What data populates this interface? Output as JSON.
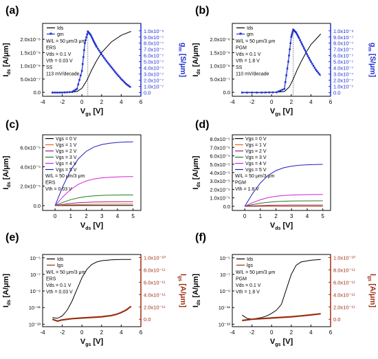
{
  "figure": {
    "panels": [
      {
        "id": "a",
        "label": "(a)"
      },
      {
        "id": "b",
        "label": "(b)"
      },
      {
        "id": "c",
        "label": "(c)"
      },
      {
        "id": "d",
        "label": "(d)"
      },
      {
        "id": "e",
        "label": "(e)"
      },
      {
        "id": "f",
        "label": "(f)"
      }
    ]
  },
  "colors": {
    "ids": "#000000",
    "gm": "#1f2fd1",
    "log_gm": "#9b2d10",
    "vg": [
      "#000000",
      "#e0651b",
      "#a1207a",
      "#1e7d1e",
      "#d41fd4",
      "#1e1ebd"
    ]
  },
  "chart_data": [
    {
      "id": "a",
      "type": "line",
      "xlabel": "Vgs [V]",
      "ylabel": "Ids [A/μm]",
      "y2label": "gm [S/μm]",
      "xlim": [
        -4,
        6
      ],
      "xticks": [
        "-4",
        "-2",
        "0",
        "2",
        "4",
        "6"
      ],
      "ylim": [
        -1.5e-07,
        2.6e-06
      ],
      "yticks": [
        "0.0",
        "5.0x10⁻⁷",
        "1.0x10⁻⁶",
        "1.5x10⁻⁶",
        "2.0x10⁻⁶"
      ],
      "y2lim": [
        -6e-08,
        1.12e-06
      ],
      "y2ticks": [
        "0.0",
        "1.0x10⁻⁷",
        "2.0x10⁻⁷",
        "3.0x10⁻⁷",
        "4.0x10⁻⁷",
        "5.0x10⁻⁷",
        "6.0x10⁻⁷",
        "7.0x10⁻⁷",
        "8.0x10⁻⁷",
        "9.0x10⁻⁷",
        "1.0x10⁻⁶"
      ],
      "legend": [
        "Ids",
        "gm"
      ],
      "annotations": [
        "W/L = 50 μm/3 μm",
        "ERS",
        "Vds = 0.1 V",
        "Vth = 0.03 V",
        "SS",
        "113 mV/decade"
      ],
      "series": [
        {
          "name": "Ids",
          "axis": "left",
          "x": [
            -3,
            -2,
            -1,
            -0.5,
            0,
            0.5,
            1,
            1.5,
            2,
            3,
            4,
            5
          ],
          "values": [
            0,
            0,
            5e-09,
            3e-08,
            1.5e-07,
            4.5e-07,
            8.5e-07,
            1.2e-06,
            1.5e-06,
            1.9e-06,
            2.15e-06,
            2.3e-06
          ]
        },
        {
          "name": "gm",
          "axis": "right",
          "markers": true,
          "x": [
            -3,
            -2,
            -1,
            -0.5,
            0,
            0.3,
            0.6,
            0.9,
            1.2,
            1.5,
            2,
            2.5,
            3,
            3.5,
            4,
            4.5,
            5
          ],
          "values": [
            0,
            0,
            1e-08,
            6e-08,
            3.5e-07,
            8e-07,
            9.9e-07,
            9.3e-07,
            8.3e-07,
            7.4e-07,
            6.2e-07,
            5.1e-07,
            4.1e-07,
            3.1e-07,
            2.2e-07,
            1.4e-07,
            8e-08
          ]
        }
      ]
    },
    {
      "id": "b",
      "type": "line",
      "xlabel": "Vgs [V]",
      "ylabel": "Ids [A/μm]",
      "y2label": "gm [S/μm]",
      "xlim": [
        -4,
        6
      ],
      "xticks": [
        "-4",
        "-2",
        "0",
        "2",
        "4",
        "6"
      ],
      "ylim": [
        -1.5e-07,
        2.6e-06
      ],
      "yticks": [
        "0.0",
        "5.0x10⁻⁷",
        "1.0x10⁻⁶",
        "1.5x10⁻⁶",
        "2.0x10⁻⁶"
      ],
      "y2lim": [
        -6e-08,
        1.12e-06
      ],
      "y2ticks": [
        "0.0",
        "1.0x10⁻⁷",
        "2.0x10⁻⁷",
        "3.0x10⁻⁷",
        "4.0x10⁻⁷",
        "5.0x10⁻⁷",
        "6.0x10⁻⁷",
        "7.0x10⁻⁷",
        "8.0x10⁻⁷",
        "9.0x10⁻⁷",
        "1.0x10⁻⁶"
      ],
      "legend": [
        "Ids",
        "gm"
      ],
      "annotations": [
        "W/L = 50 μm/3 μm",
        "PGM",
        "Vds = 0.1 V",
        "Vth = 1.8 V",
        "SS",
        "110 mV/decade"
      ],
      "series": [
        {
          "name": "Ids",
          "axis": "left",
          "x": [
            -3,
            -1,
            0.5,
            1.3,
            1.8,
            2.2,
            2.6,
            3,
            3.5,
            4,
            4.5,
            5
          ],
          "values": [
            0,
            0,
            5e-09,
            3e-08,
            2e-07,
            5e-07,
            8.5e-07,
            1.15e-06,
            1.5e-06,
            1.8e-06,
            2e-06,
            2.2e-06
          ]
        },
        {
          "name": "gm",
          "axis": "right",
          "markers": true,
          "x": [
            -3,
            -1,
            0.5,
            1.3,
            1.7,
            2.0,
            2.2,
            2.5,
            2.8,
            3.2,
            3.6,
            4,
            4.5,
            5
          ],
          "values": [
            0,
            0,
            5e-09,
            6e-08,
            5e-07,
            9e-07,
            1.02e-06,
            9.7e-07,
            8.8e-07,
            7.5e-07,
            6.2e-07,
            5e-07,
            3.7e-07,
            2.7e-07
          ]
        }
      ]
    },
    {
      "id": "c",
      "type": "line",
      "xlabel": "Vds [V]",
      "ylabel": "Ids [A/μm]",
      "xlim": [
        -0.8,
        5.5
      ],
      "xticks": [
        "0",
        "1",
        "2",
        "3",
        "4",
        "5"
      ],
      "ylim": [
        -5e-06,
        7.3e-05
      ],
      "yticks": [
        "0.0",
        "2.0x10⁻⁵",
        "4.0x10⁻⁵",
        "6.0x10⁻⁵"
      ],
      "legend": [
        "Vgs = 0 V",
        "Vgs = 1 V",
        "Vgs = 2 V",
        "Vgs = 3 V",
        "Vgs = 4 V",
        "Vgs = 5 V"
      ],
      "annotations": [
        "W/L = 50 μm/3 μm",
        "ERS",
        "Vth = 0.03 V"
      ],
      "sat": [
        1e-07,
        1.5e-06,
        4e-06,
        1.1e-05,
        3e-05,
        6.6e-05
      ],
      "x": [
        0,
        0.5,
        1,
        1.5,
        2,
        2.5,
        3,
        3.5,
        4,
        4.5,
        5
      ]
    },
    {
      "id": "d",
      "type": "line",
      "xlabel": "Vds [V]",
      "ylabel": "Ids [A/μm]",
      "xlim": [
        -0.8,
        5.5
      ],
      "xticks": [
        "0",
        "1",
        "2",
        "3",
        "4",
        "5"
      ],
      "ylim": [
        -5e-06,
        8.5e-05
      ],
      "yticks": [
        "0.0",
        "1.0x10⁻⁵",
        "2.0x10⁻⁵",
        "3.0x10⁻⁵",
        "4.0x10⁻⁵",
        "5.0x10⁻⁵",
        "6.0x10⁻⁵",
        "7.0x10⁻⁵",
        "8.0x10⁻⁵"
      ],
      "legend": [
        "Vgs = 0 V",
        "Vgs = 1 V",
        "Vgs = 2 V",
        "Vgs = 3 V",
        "Vgs = 4 V",
        "Vgs = 5 V"
      ],
      "annotations": [
        "W/L = 50 μm/3 μm",
        "PGM",
        "Vth = 1.8 V"
      ],
      "sat": [
        5e-08,
        2e-07,
        1.5e-06,
        6.5e-06,
        1.4e-05,
        5e-05
      ],
      "x": [
        0,
        0.5,
        1,
        1.5,
        2,
        2.5,
        3,
        3.5,
        4,
        4.5,
        5
      ]
    },
    {
      "id": "e",
      "type": "line",
      "xlabel": "Vgs [V]",
      "ylabel": "Ids [A/μm]",
      "y2label": "lgs [A/μm]",
      "xlim": [
        -4,
        6
      ],
      "xticks": [
        "-4",
        "-2",
        "0",
        "2",
        "4",
        "6"
      ],
      "ylim_exp": [
        -13.3,
        -4.6
      ],
      "yticks": [
        "10⁻¹³",
        "10⁻¹¹",
        "10⁻⁹",
        "10⁻⁷",
        "10⁻⁵"
      ],
      "y2lim": [
        -1.2e-11,
        1.05e-10
      ],
      "y2ticks": [
        "0.0",
        "2.0x10⁻¹¹",
        "4.0x10⁻¹¹",
        "6.0x10⁻¹¹",
        "8.0x10⁻¹¹",
        "1.0x10⁻¹⁰"
      ],
      "legend": [
        "Ids",
        "lgs"
      ],
      "annotations": [
        "W/L = 50 μm/3 μm",
        "ERS",
        "Vds = 0.1 V",
        "Vth = 0.03 V"
      ],
      "series": [
        {
          "name": "Ids",
          "axis": "left",
          "x": [
            -3,
            -2.5,
            -2,
            -1.5,
            -1,
            -0.5,
            0,
            0.5,
            1,
            1.5,
            2,
            3,
            4,
            5
          ],
          "log10": [
            -12.2,
            -12.3,
            -12.0,
            -11.3,
            -10.2,
            -8.8,
            -7.4,
            -6.4,
            -5.8,
            -5.5,
            -5.35,
            -5.25,
            -5.2,
            -5.2
          ]
        },
        {
          "name": "lgs",
          "axis": "right",
          "x": [
            -3,
            -2.5,
            -2,
            -1,
            0,
            1,
            2,
            3,
            3.5,
            4,
            4.5,
            5
          ],
          "values": [
            0,
            -3e-12,
            -1e-12,
            1e-12,
            2e-12,
            3e-12,
            4e-12,
            6e-12,
            8e-12,
            1.1e-11,
            1.5e-11,
            2.1e-11
          ]
        }
      ]
    },
    {
      "id": "f",
      "type": "line",
      "xlabel": "Vgs [V]",
      "ylabel": "Ids [A/μm]",
      "y2label": "lgs [A/μm]",
      "xlim": [
        -4,
        6
      ],
      "xticks": [
        "-4",
        "-2",
        "0",
        "2",
        "4",
        "6"
      ],
      "ylim_exp": [
        -13.3,
        -4.6
      ],
      "yticks": [
        "10⁻¹³",
        "10⁻¹¹",
        "10⁻⁹",
        "10⁻⁷",
        "10⁻⁵"
      ],
      "y2lim": [
        -1.2e-11,
        1.05e-10
      ],
      "y2ticks": [
        "0.0",
        "2.0x10⁻¹¹",
        "4.0x10⁻¹¹",
        "6.0x10⁻¹¹",
        "8.0x10⁻¹¹",
        "1.0x10⁻¹⁰"
      ],
      "legend": [
        "Ids",
        "lgs"
      ],
      "annotations": [
        "W/L = 50 μm/3 μm",
        "PGM",
        "Vds = 0.1 V",
        "Vth = 1.8 V"
      ],
      "series": [
        {
          "name": "Ids",
          "axis": "left",
          "x": [
            -3,
            -2.5,
            -2,
            -1.5,
            -1,
            -0.5,
            0,
            0.5,
            1,
            1.5,
            2,
            2.5,
            3,
            4,
            5
          ],
          "log10": [
            -11.9,
            -12.3,
            -12.4,
            -12.3,
            -12.2,
            -12.0,
            -11.7,
            -11.3,
            -10.6,
            -8.8,
            -7.0,
            -5.9,
            -5.5,
            -5.3,
            -5.2
          ]
        },
        {
          "name": "lgs",
          "axis": "right",
          "x": [
            -3,
            -2.5,
            -2,
            -1,
            0,
            1,
            2,
            3,
            4,
            5
          ],
          "values": [
            -2e-12,
            -1e-12,
            0,
            1e-12,
            2e-12,
            3e-12,
            4e-12,
            5.5e-12,
            7e-12,
            9e-12
          ]
        }
      ]
    }
  ]
}
